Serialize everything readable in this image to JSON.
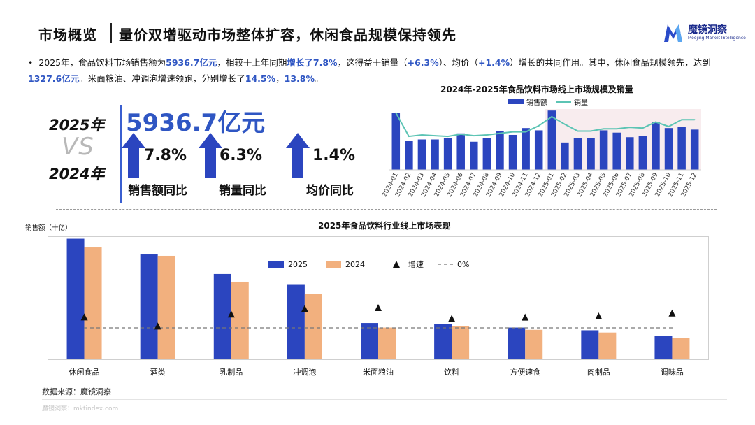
{
  "header": {
    "title": "市场概览",
    "subtitle": "量价双增驱动市场整体扩容，休闲食品规模保持领先",
    "logo_name": "魔镜洞察",
    "logo_en": "Moojing Market Intelligence"
  },
  "summary": {
    "bullet": "•",
    "t1": "2025年，食品饮料市场销售额为",
    "v1": "5936.7亿元",
    "t2": "，相较于上年同期",
    "v2": "增长了7.8%",
    "t3": "，这得益于销量（",
    "v3": "+6.3%",
    "t4": "）、均价（",
    "v4": "+1.4%",
    "t5": "）增长的共同作用。其中，休闲食品规模领先，达到",
    "v5": "1327.6亿元",
    "t6": "。米面粮油、冲调泡增速领跑，分别增长了",
    "v6": "14.5%",
    "t7": "，",
    "v7": "13.8%",
    "t8": "。"
  },
  "kpi": {
    "year_a": "2025年",
    "vs": "VS",
    "year_b": "2024年",
    "total": "5936.7亿元",
    "items": [
      {
        "value": "7.8%",
        "label": "销售额同比"
      },
      {
        "value": "6.3%",
        "label": "销量同比"
      },
      {
        "value": "1.4%",
        "label": "均价同比"
      }
    ],
    "accent": "#2f56c3"
  },
  "chart_data": [
    {
      "type": "bar",
      "title": "2024年-2025年食品饮料市场线上市场规模及销量",
      "legend": [
        "销售额",
        "销量"
      ],
      "categories": [
        "2024-01",
        "2024-02",
        "2024-03",
        "2024-04",
        "2024-05",
        "2024-06",
        "2024-07",
        "2024-08",
        "2024-09",
        "2024-10",
        "2024-11",
        "2024-12",
        "2025-01",
        "2025-02",
        "2025-03",
        "2025-04",
        "2025-05",
        "2025-06",
        "2025-07",
        "2025-08",
        "2025-09",
        "2025-10",
        "2025-11",
        "2025-12"
      ],
      "series": [
        {
          "name": "销售额",
          "chart": "bar",
          "values": [
            75,
            38,
            40,
            40,
            42,
            48,
            37,
            42,
            51,
            46,
            55,
            52,
            78,
            36,
            42,
            42,
            52,
            49,
            43,
            45,
            63,
            55,
            57,
            53
          ]
        },
        {
          "name": "销量",
          "chart": "line",
          "values": [
            75,
            44,
            46,
            45,
            44,
            47,
            45,
            46,
            48,
            50,
            50,
            58,
            70,
            60,
            51,
            51,
            54,
            54,
            56,
            55,
            63,
            57,
            66,
            66
          ]
        }
      ],
      "highlight_range": [
        "2025-01",
        "2025-12"
      ],
      "colors": {
        "bar": "#2b45bf",
        "line": "#5cc4b4",
        "highlight": "#f8ecee"
      }
    },
    {
      "type": "bar",
      "title": "2025年食品饮料行业线上市场表现",
      "ylabel": "销售额（十亿）",
      "legend": [
        "2025",
        "2024",
        "增速",
        "0%"
      ],
      "categories": [
        "休闲食品",
        "酒类",
        "乳制品",
        "冲调泡",
        "米面粮油",
        "饮料",
        "方便速食",
        "肉制品",
        "调味品"
      ],
      "series": [
        {
          "name": "2025",
          "values": [
            132.8,
            115.5,
            94,
            82,
            40,
            39,
            35,
            32,
            26
          ]
        },
        {
          "name": "2024",
          "values": [
            123.2,
            114,
            85.5,
            72,
            35,
            36.5,
            32.5,
            29.5,
            23.5
          ]
        },
        {
          "name": "增速",
          "type": "scatter",
          "values": [
            7.8,
            1.3,
            9.9,
            13.8,
            14.5,
            6.8,
            7.7,
            8.5,
            10.6
          ]
        }
      ],
      "reference_line": 0,
      "colors": {
        "2025": "#2b45bf",
        "2024": "#f2b07e",
        "growth": "#111111",
        "zero": "#777777"
      }
    }
  ],
  "footer": {
    "source": "数据来源：魔镜洞察",
    "watermark": "魔镜洞察：mktindex.com"
  }
}
